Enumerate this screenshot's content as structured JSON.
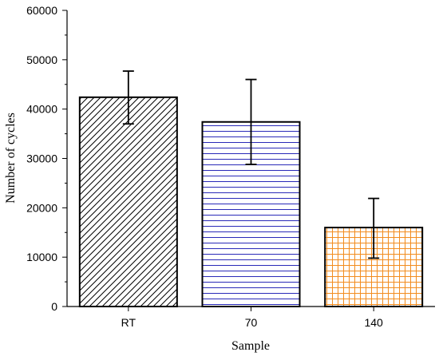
{
  "chart_data": {
    "type": "bar",
    "categories": [
      "RT",
      "70",
      "140"
    ],
    "values": [
      42400,
      37400,
      16000
    ],
    "errors": [
      [
        37000,
        47700
      ],
      [
        28800,
        46000
      ],
      [
        9800,
        21900
      ]
    ],
    "xlabel": "Sample",
    "ylabel": "Number of cycles",
    "ylim": [
      0,
      60000
    ],
    "yticks": [
      "0",
      "10000",
      "20000",
      "30000",
      "40000",
      "50000",
      "60000"
    ],
    "grid": false,
    "bar_colors": [
      "#000000",
      "#2a2ab8",
      "#f28c1e"
    ],
    "bar_patterns": [
      "diagonal-hatch",
      "horizontal-lines",
      "grid"
    ]
  }
}
